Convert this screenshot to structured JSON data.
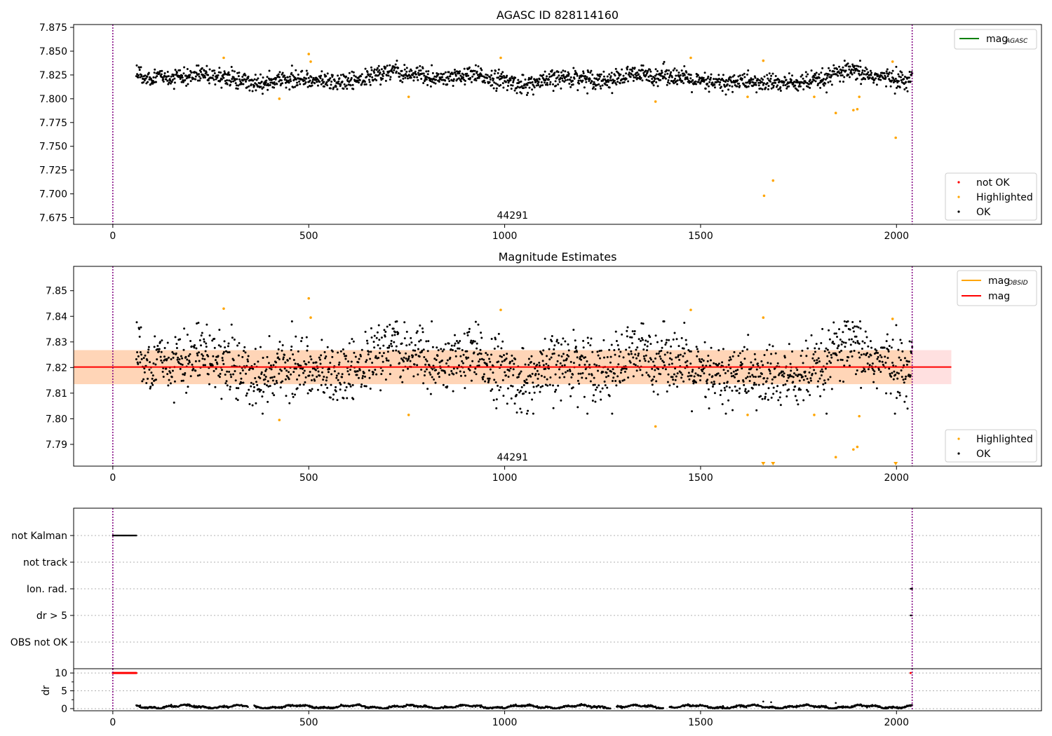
{
  "chart_data": [
    {
      "type": "scatter",
      "title": "AGASC ID 828114160",
      "xlim": [
        -100,
        2370
      ],
      "ylim": [
        7.668,
        7.878
      ],
      "xticks": [
        0,
        500,
        1000,
        1500,
        2000
      ],
      "yticks": [
        7.675,
        7.7,
        7.725,
        7.75,
        7.775,
        7.8,
        7.825,
        7.85,
        7.875
      ],
      "ytick_labels": [
        "7.675",
        "7.700",
        "7.725",
        "7.750",
        "7.775",
        "7.800",
        "7.825",
        "7.850",
        "7.875"
      ],
      "vlines": [
        0,
        2040
      ],
      "annotation": {
        "text": "44291",
        "x": 1020
      },
      "legend_line": {
        "label": "mag",
        "sub": "AGASC",
        "color": "#008000"
      },
      "legend_points": [
        {
          "label": "not OK",
          "color": "#ff0000"
        },
        {
          "label": "Highlighted",
          "color": "#ffa500"
        },
        {
          "label": "OK",
          "color": "#000000"
        }
      ],
      "ok_x_range": [
        60,
        2040
      ],
      "ok_mean": 7.821,
      "highlighted": [
        [
          283,
          7.843
        ],
        [
          425,
          7.8
        ],
        [
          500,
          7.847
        ],
        [
          505,
          7.839
        ],
        [
          755,
          7.802
        ],
        [
          990,
          7.843
        ],
        [
          1385,
          7.797
        ],
        [
          1475,
          7.843
        ],
        [
          1620,
          7.802
        ],
        [
          1660,
          7.84
        ],
        [
          1662,
          7.698
        ],
        [
          1685,
          7.714
        ],
        [
          1790,
          7.802
        ],
        [
          1845,
          7.785
        ],
        [
          1890,
          7.788
        ],
        [
          1900,
          7.789
        ],
        [
          1905,
          7.802
        ],
        [
          1990,
          7.839
        ],
        [
          1998,
          7.759
        ]
      ]
    },
    {
      "type": "scatter",
      "title": "Magnitude Estimates",
      "xlim": [
        -100,
        2370
      ],
      "ylim": [
        7.7815,
        7.8595
      ],
      "xticks": [
        0,
        500,
        1000,
        1500,
        2000
      ],
      "yticks": [
        7.79,
        7.8,
        7.81,
        7.82,
        7.83,
        7.84,
        7.85
      ],
      "ytick_labels": [
        "7.79",
        "7.80",
        "7.81",
        "7.82",
        "7.83",
        "7.84",
        "7.85"
      ],
      "vlines": [
        0,
        2040
      ],
      "annotation": {
        "text": "44291",
        "x": 1020
      },
      "mag": 7.8202,
      "band_red": [
        7.8135,
        7.8268
      ],
      "band_orange": [
        7.8135,
        7.8268
      ],
      "band_x": [
        -100,
        2140
      ],
      "legend_lines": [
        {
          "label": "mag",
          "sub": "OBSID",
          "color": "#ffa500"
        },
        {
          "label": "mag",
          "sub": "",
          "color": "#ff0000"
        }
      ],
      "legend_points": [
        {
          "label": "Highlighted",
          "color": "#ffa500"
        },
        {
          "label": "OK",
          "color": "#000000"
        }
      ],
      "highlighted": [
        [
          283,
          7.843
        ],
        [
          425,
          7.7995
        ],
        [
          500,
          7.847
        ],
        [
          505,
          7.8395
        ],
        [
          755,
          7.8015
        ],
        [
          990,
          7.8425
        ],
        [
          1385,
          7.797
        ],
        [
          1475,
          7.8425
        ],
        [
          1620,
          7.8015
        ],
        [
          1660,
          7.8395
        ],
        [
          1790,
          7.8015
        ],
        [
          1845,
          7.785
        ],
        [
          1890,
          7.788
        ],
        [
          1900,
          7.789
        ],
        [
          1905,
          7.801
        ],
        [
          1990,
          7.839
        ]
      ],
      "below_range_markers": [
        1660,
        1685,
        1998
      ]
    },
    {
      "type": "scatter",
      "title": "",
      "xlim": [
        -100,
        2370
      ],
      "categories": [
        "not Kalman",
        "not track",
        "Ion. rad.",
        "dr > 5",
        "OBS not OK"
      ],
      "vlines": [
        0,
        2040
      ],
      "flags": {
        "not Kalman": [
          [
            0,
            60
          ]
        ],
        "Ion. rad.": [
          [
            2036,
            2040
          ]
        ],
        "dr > 5": [
          [
            2036,
            2040
          ]
        ]
      }
    },
    {
      "type": "scatter",
      "title": "",
      "xlim": [
        -100,
        2370
      ],
      "ylim": [
        -0.6,
        11.2
      ],
      "xticks": [
        0,
        500,
        1000,
        1500,
        2000
      ],
      "yticks": [
        0,
        5,
        10
      ],
      "ytick_labels": [
        "0",
        "5",
        "10"
      ],
      "ylabel": "dr",
      "vlines": [
        0,
        2040
      ],
      "dr_capped": {
        "value": 10,
        "x_range": [
          0,
          60
        ],
        "extra_x": [
          2036
        ]
      },
      "dr_ok_x_range": [
        60,
        2040
      ]
    }
  ]
}
